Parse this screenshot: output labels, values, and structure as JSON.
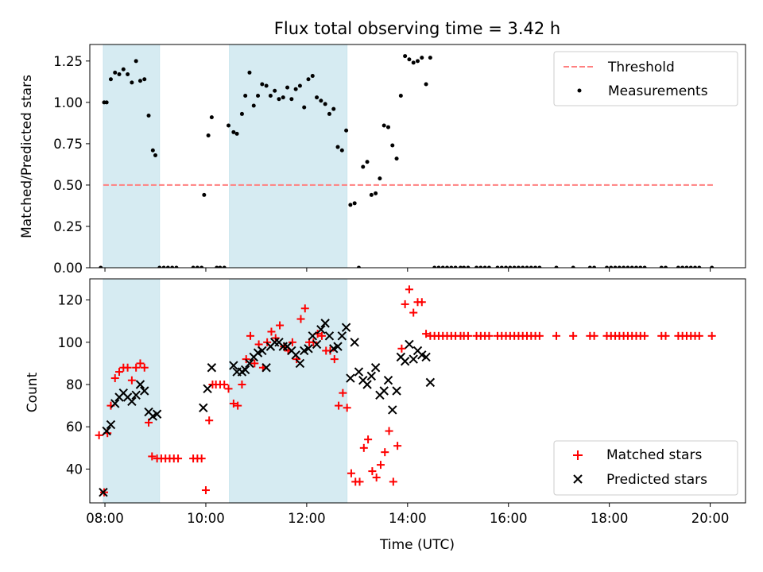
{
  "chart_data": [
    {
      "type": "scatter",
      "title": "Flux total observing time = 3.42 h",
      "xlabel": "",
      "ylabel": "Matched/Predicted stars",
      "xlim": [
        "07:42",
        "20:42"
      ],
      "ylim": [
        0,
        1.35
      ],
      "x_ticks": [
        "08:00",
        "10:00",
        "12:00",
        "14:00",
        "16:00",
        "18:00",
        "20:00"
      ],
      "y_ticks": [
        "0.00",
        "0.25",
        "0.50",
        "0.75",
        "1.00",
        "1.25"
      ],
      "grid": false,
      "legend_position": "top-right",
      "shaded_intervals": [
        [
          "07:58",
          "09:05"
        ],
        [
          "10:28",
          "12:48"
        ]
      ],
      "shade_color": "#add8e6",
      "threshold": {
        "name": "Threshold",
        "value": 0.5,
        "x_range": [
          "07:58",
          "20:05"
        ],
        "color": "#ff8080"
      },
      "series": [
        {
          "name": "Measurements",
          "marker": "dot",
          "color": "#000000",
          "x": [
            "07:55",
            "07:59",
            "08:02",
            "08:07",
            "08:12",
            "08:17",
            "08:22",
            "08:27",
            "08:32",
            "08:37",
            "08:42",
            "08:47",
            "08:52",
            "08:57",
            "09:00",
            "09:05",
            "09:10",
            "09:15",
            "09:20",
            "09:25",
            "09:45",
            "09:50",
            "09:55",
            "09:58",
            "10:03",
            "10:07",
            "10:13",
            "10:17",
            "10:22",
            "10:27",
            "10:33",
            "10:37",
            "10:43",
            "10:47",
            "10:52",
            "10:57",
            "11:02",
            "11:07",
            "11:12",
            "11:17",
            "11:22",
            "11:27",
            "11:32",
            "11:37",
            "11:42",
            "11:47",
            "11:52",
            "11:57",
            "12:02",
            "12:07",
            "12:12",
            "12:17",
            "12:22",
            "12:27",
            "12:32",
            "12:37",
            "12:42",
            "12:47",
            "12:52",
            "12:57",
            "13:02",
            "13:07",
            "13:12",
            "13:17",
            "13:22",
            "13:27",
            "13:32",
            "13:37",
            "13:42",
            "13:47",
            "13:52",
            "13:57",
            "14:02",
            "14:07",
            "14:12",
            "14:17",
            "14:22",
            "14:27",
            "14:32",
            "14:37",
            "14:42",
            "14:47",
            "14:52",
            "14:57",
            "15:03",
            "15:07",
            "15:12",
            "15:22",
            "15:27",
            "15:32",
            "15:37",
            "15:47",
            "15:52",
            "15:57",
            "16:02",
            "16:07",
            "16:12",
            "16:17",
            "16:22",
            "16:27",
            "16:32",
            "16:37",
            "16:57",
            "17:17",
            "17:37",
            "17:42",
            "17:57",
            "18:02",
            "18:07",
            "18:12",
            "18:17",
            "18:22",
            "18:27",
            "18:32",
            "18:37",
            "18:42",
            "19:02",
            "19:07",
            "19:22",
            "19:27",
            "19:32",
            "19:37",
            "19:42",
            "19:47",
            "20:02"
          ],
          "y": [
            0.0,
            1.0,
            1.0,
            1.14,
            1.18,
            1.17,
            1.2,
            1.17,
            1.12,
            1.25,
            1.13,
            1.14,
            0.92,
            0.71,
            0.68,
            0.0,
            0.0,
            0.0,
            0.0,
            0.0,
            0.0,
            0.0,
            0.0,
            0.44,
            0.8,
            0.91,
            0.0,
            0.0,
            0.0,
            0.86,
            0.82,
            0.81,
            0.93,
            1.04,
            1.18,
            0.98,
            1.04,
            1.11,
            1.1,
            1.04,
            1.07,
            1.02,
            1.03,
            1.09,
            1.02,
            1.08,
            1.1,
            0.97,
            1.14,
            1.16,
            1.03,
            1.01,
            0.99,
            0.93,
            0.96,
            0.73,
            0.71,
            0.83,
            0.38,
            0.39,
            0.0,
            0.61,
            0.64,
            0.44,
            0.45,
            0.54,
            0.86,
            0.85,
            0.74,
            0.66,
            1.04,
            1.28,
            1.26,
            1.24,
            1.25,
            1.27,
            1.11,
            1.27,
            0.0,
            0.0,
            0.0,
            0.0,
            0.0,
            0.0,
            0.0,
            0.0,
            0.0,
            0.0,
            0.0,
            0.0,
            0.0,
            0.0,
            0.0,
            0.0,
            0.0,
            0.0,
            0.0,
            0.0,
            0.0,
            0.0,
            0.0,
            0.0,
            0.0,
            0.0,
            0.0,
            0.0,
            0.0,
            0.0,
            0.0,
            0.0,
            0.0,
            0.0,
            0.0,
            0.0,
            0.0,
            0.0,
            0.0,
            0.0,
            0.0,
            0.0,
            0.0,
            0.0,
            0.0,
            0.0,
            0.0
          ]
        }
      ]
    },
    {
      "type": "scatter",
      "title": "",
      "xlabel": "Time (UTC)",
      "ylabel": "Count",
      "xlim": [
        "07:42",
        "20:42"
      ],
      "ylim": [
        24,
        130
      ],
      "x_ticks": [
        "08:00",
        "10:00",
        "12:00",
        "14:00",
        "16:00",
        "18:00",
        "20:00"
      ],
      "y_ticks": [
        "40",
        "60",
        "80",
        "100",
        "120"
      ],
      "grid": false,
      "legend_position": "bottom-right",
      "shaded_intervals": [
        [
          "07:58",
          "09:05"
        ],
        [
          "10:28",
          "12:48"
        ]
      ],
      "shade_color": "#add8e6",
      "series": [
        {
          "name": "Matched stars",
          "marker": "plus",
          "color": "#ff0000",
          "x": [
            "07:53",
            "07:59",
            "08:03",
            "08:07",
            "08:12",
            "08:17",
            "08:22",
            "08:27",
            "08:32",
            "08:37",
            "08:42",
            "08:47",
            "08:52",
            "08:56",
            "09:02",
            "09:07",
            "09:12",
            "09:17",
            "09:22",
            "09:27",
            "09:45",
            "09:50",
            "09:55",
            "10:00",
            "10:04",
            "10:08",
            "10:12",
            "10:17",
            "10:22",
            "10:27",
            "10:33",
            "10:38",
            "10:43",
            "10:48",
            "10:53",
            "10:58",
            "11:03",
            "11:08",
            "11:13",
            "11:18",
            "11:23",
            "11:28",
            "11:33",
            "11:38",
            "11:43",
            "11:48",
            "11:53",
            "11:58",
            "12:03",
            "12:08",
            "12:13",
            "12:18",
            "12:23",
            "12:28",
            "12:33",
            "12:38",
            "12:43",
            "12:48",
            "12:53",
            "12:58",
            "13:03",
            "13:08",
            "13:13",
            "13:18",
            "13:23",
            "13:28",
            "13:33",
            "13:38",
            "13:43",
            "13:48",
            "13:53",
            "13:57",
            "14:02",
            "14:07",
            "14:12",
            "14:17",
            "14:22",
            "14:27",
            "14:32",
            "14:37",
            "14:42",
            "14:47",
            "14:52",
            "14:57",
            "15:03",
            "15:07",
            "15:12",
            "15:22",
            "15:27",
            "15:32",
            "15:37",
            "15:47",
            "15:52",
            "15:57",
            "16:02",
            "16:07",
            "16:12",
            "16:17",
            "16:22",
            "16:27",
            "16:32",
            "16:37",
            "16:57",
            "17:17",
            "17:37",
            "17:42",
            "17:57",
            "18:02",
            "18:07",
            "18:12",
            "18:17",
            "18:22",
            "18:27",
            "18:32",
            "18:37",
            "18:42",
            "19:02",
            "19:07",
            "19:22",
            "19:27",
            "19:32",
            "19:37",
            "19:42",
            "19:47",
            "20:02"
          ],
          "y": [
            56,
            29,
            57,
            70,
            83,
            86,
            88,
            88,
            82,
            88,
            90,
            88,
            62,
            46,
            45,
            45,
            45,
            45,
            45,
            45,
            45,
            45,
            45,
            30,
            63,
            80,
            80,
            80,
            80,
            78,
            71,
            70,
            80,
            92,
            103,
            90,
            99,
            88,
            100,
            105,
            102,
            108,
            98,
            96,
            100,
            92,
            111,
            116,
            100,
            100,
            104,
            103,
            96,
            96,
            92,
            70,
            76,
            69,
            38,
            34,
            34,
            50,
            54,
            39,
            36,
            42,
            48,
            58,
            34,
            51,
            97,
            118,
            125,
            114,
            119,
            119,
            104,
            103,
            103,
            103,
            103,
            103,
            103,
            103,
            103,
            103,
            103,
            103,
            103,
            103,
            103,
            103,
            103,
            103,
            103,
            103,
            103,
            103,
            103,
            103,
            103,
            103,
            103,
            103,
            103,
            103,
            103,
            103,
            103,
            103,
            103,
            103,
            103,
            103,
            103,
            103,
            103,
            103,
            103,
            103,
            103,
            103,
            103,
            103,
            103
          ]
        },
        {
          "name": "Predicted stars",
          "marker": "x",
          "color": "#000000",
          "x": [
            "07:58",
            "08:02",
            "08:07",
            "08:12",
            "08:17",
            "08:22",
            "08:27",
            "08:32",
            "08:37",
            "08:42",
            "08:47",
            "08:52",
            "08:57",
            "09:02",
            "09:57",
            "10:02",
            "10:07",
            "10:33",
            "10:37",
            "10:43",
            "10:47",
            "10:52",
            "10:57",
            "11:02",
            "11:07",
            "11:12",
            "11:17",
            "11:22",
            "11:27",
            "11:32",
            "11:37",
            "11:42",
            "11:47",
            "11:52",
            "11:57",
            "12:02",
            "12:07",
            "12:12",
            "12:17",
            "12:22",
            "12:27",
            "12:32",
            "12:37",
            "12:42",
            "12:47",
            "12:52",
            "12:57",
            "13:02",
            "13:07",
            "13:12",
            "13:17",
            "13:22",
            "13:27",
            "13:32",
            "13:37",
            "13:42",
            "13:47",
            "13:52",
            "13:57",
            "14:02",
            "14:07",
            "14:12",
            "14:17",
            "14:22",
            "14:27"
          ],
          "y": [
            29,
            58,
            61,
            71,
            74,
            76,
            74,
            72,
            75,
            80,
            77,
            67,
            65,
            66,
            69,
            78,
            88,
            89,
            86,
            86,
            87,
            90,
            93,
            95,
            96,
            88,
            98,
            100,
            100,
            98,
            98,
            96,
            94,
            90,
            96,
            97,
            103,
            99,
            106,
            109,
            103,
            97,
            98,
            103,
            107,
            83,
            100,
            86,
            82,
            80,
            84,
            88,
            75,
            77,
            82,
            68,
            77,
            93,
            91,
            99,
            92,
            96,
            94,
            93,
            81
          ]
        }
      ]
    }
  ]
}
